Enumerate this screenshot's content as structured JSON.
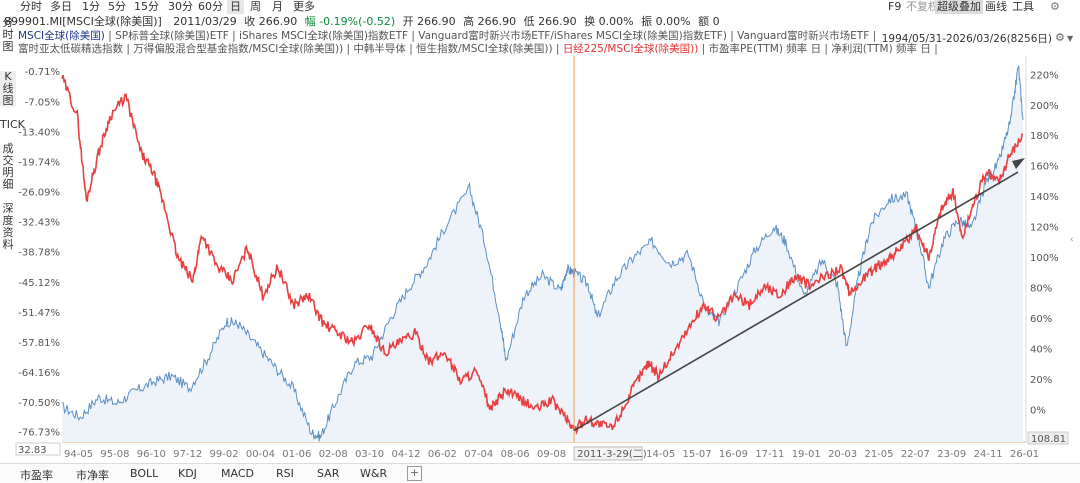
{
  "toolbar": {
    "periods": [
      "分时",
      "多日",
      "1分",
      "5分",
      "15分",
      "30分",
      "60分",
      "日",
      "周",
      "月",
      "更多"
    ],
    "selected": "日",
    "f9": "F9",
    "no_adjust": "不复权",
    "overlay": "超级叠加",
    "draw": "画线",
    "tools": "工具"
  },
  "info": {
    "code": "899901.MI[MSCI全球(除美国)]",
    "date": "2011/03/29",
    "close": "收 266.90",
    "change": "幅 -0.19%(-0.52)",
    "open": "开 266.90",
    "high": "高 266.90",
    "low": "低 266.90",
    "turnover": "换 0.00%",
    "amplitude": "振 0.00%",
    "amount": "额 0"
  },
  "legend": {
    "line1_main": "MSCI全球(除美国)",
    "line1_rest": " | SP标普全球(除美国)ETF | iShares MSCI全球(除美国)指数ETF | Vanguard富时新兴市场ETF/iShares MSCI全球(除美国)指数ETF) | Vanguard富时新兴市场ETF |",
    "line2_a": "富时亚太低碳精选指数 | 万得偏股混合型基金指数/MSCI全球(除美国)) | 中韩半导体 | 恒生指数/MSCI全球(除美国)) | ",
    "line2_red": "日经225/MSCI全球(除美国))",
    "line2_b": " | 市盈率PE(TTM) 频率 日 | 净利润(TTM) 频率 日 |",
    "range": "1994/05/31-2026/03/26(8256日)"
  },
  "sidebar": [
    "分时图",
    "K线图",
    "TICK",
    "成交明细",
    "深度资料"
  ],
  "bottom_tabs": [
    "市盈率",
    "市净率",
    "BOLL",
    "KDJ",
    "MACD",
    "RSI",
    "SAR",
    "W&R"
  ],
  "cursor_label": "2011-3-29(二)",
  "chart_data": {
    "type": "line",
    "x_ticks": [
      "94-05",
      "95-08",
      "96-10",
      "97-12",
      "99-02",
      "00-04",
      "01-06",
      "02-08",
      "03-10",
      "04-12",
      "06-02",
      "07-04",
      "08-06",
      "09-08",
      "10",
      "13-03",
      "14-05",
      "15-07",
      "16-09",
      "17-11",
      "19-01",
      "20-03",
      "21-05",
      "22-07",
      "23-09",
      "24-11",
      "26-01"
    ],
    "left_axis": [
      "-0.71%",
      "-7.05%",
      "-13.40%",
      "-19.74%",
      "-26.09%",
      "-32.43%",
      "-38.78%",
      "-45.12%",
      "-51.47%",
      "-57.81%",
      "-64.16%",
      "-70.50%",
      "-76.73%"
    ],
    "right_axis": [
      "220%",
      "200%",
      "180%",
      "160%",
      "140%",
      "120%",
      "100%",
      "80%",
      "60%",
      "40%",
      "20%",
      "0%"
    ],
    "left_marker": "32.83",
    "right_marker": "108.81",
    "cursor_date": "2011-03-29",
    "series": [
      {
        "color": "#e84040",
        "axis": "left",
        "x": [
          1994.4,
          1994.9,
          1995.2,
          1995.6,
          1996.0,
          1996.5,
          1997.0,
          1997.4,
          1997.8,
          1998.2,
          1998.7,
          1999.0,
          1999.5,
          2000.0,
          2000.5,
          2001.0,
          2001.5,
          2002.0,
          2002.5,
          2003.0,
          2003.5,
          2004.0,
          2004.5,
          2005.0,
          2005.5,
          2006.0,
          2006.5,
          2007.0,
          2007.5,
          2008.0,
          2008.5,
          2009.0,
          2009.5,
          2010.0,
          2010.5,
          2011.0,
          2011.24,
          2011.6,
          2012.0,
          2012.5,
          2013.0,
          2013.3,
          2013.7,
          2014.0,
          2014.5,
          2015.0,
          2015.5,
          2016.0,
          2016.5,
          2017.0,
          2017.5,
          2018.0,
          2018.5,
          2019.0,
          2019.5,
          2020.0,
          2020.3,
          2020.8,
          2021.2,
          2021.6,
          2022.0,
          2022.5,
          2022.9,
          2023.3,
          2023.7,
          2024.0,
          2024.4,
          2024.8,
          2025.2,
          2025.6,
          2026.0
        ],
        "y": [
          -2,
          -10,
          -28,
          -18,
          -10,
          -6,
          -18,
          -22,
          -30,
          -40,
          -45,
          -35,
          -42,
          -45,
          -38,
          -48,
          -42,
          -50,
          -48,
          -54,
          -56,
          -58,
          -54,
          -60,
          -58,
          -56,
          -62,
          -60,
          -66,
          -64,
          -72,
          -68,
          -70,
          -72,
          -70,
          -74,
          -76.5,
          -74,
          -75,
          -76,
          -70,
          -66,
          -62,
          -65,
          -60,
          -55,
          -50,
          -53,
          -48,
          -50,
          -46,
          -48,
          -44,
          -46,
          -44,
          -42,
          -48,
          -44,
          -42,
          -40,
          -38,
          -34,
          -40,
          -30,
          -26,
          -36,
          -28,
          -22,
          -24,
          -18,
          -14
        ]
      },
      {
        "color": "#5b8fc4",
        "axis": "right",
        "x": [
          1994.4,
          1995.0,
          1995.6,
          1996.2,
          1996.8,
          1997.4,
          1998.0,
          1998.6,
          1999.2,
          1999.8,
          2000.2,
          2000.8,
          2001.4,
          2002.0,
          2002.6,
          2002.9,
          2003.4,
          2004.0,
          2004.6,
          2005.2,
          2005.8,
          2006.4,
          2007.0,
          2007.8,
          2008.3,
          2008.8,
          2009.0,
          2009.6,
          2010.2,
          2010.8,
          2011.0,
          2011.24,
          2011.7,
          2012.0,
          2012.6,
          2013.2,
          2013.8,
          2014.4,
          2015.0,
          2015.6,
          2016.0,
          2016.6,
          2017.2,
          2017.8,
          2018.2,
          2018.8,
          2019.4,
          2019.9,
          2020.2,
          2020.6,
          2021.0,
          2021.6,
          2022.2,
          2022.6,
          2022.9,
          2023.4,
          2023.9,
          2024.3,
          2024.8,
          2025.2,
          2025.6,
          2025.85,
          2026.0
        ],
        "y": [
          2,
          -5,
          8,
          4,
          12,
          18,
          22,
          14,
          34,
          58,
          56,
          42,
          28,
          14,
          -15,
          -18,
          5,
          30,
          35,
          60,
          80,
          96,
          120,
          145,
          110,
          60,
          32,
          75,
          88,
          78,
          92,
          90,
          82,
          60,
          85,
          100,
          110,
          96,
          102,
          64,
          58,
          80,
          105,
          120,
          110,
          74,
          98,
          82,
          40,
          88,
          122,
          138,
          140,
          110,
          80,
          112,
          125,
          118,
          150,
          162,
          190,
          226,
          190
        ]
      }
    ]
  }
}
